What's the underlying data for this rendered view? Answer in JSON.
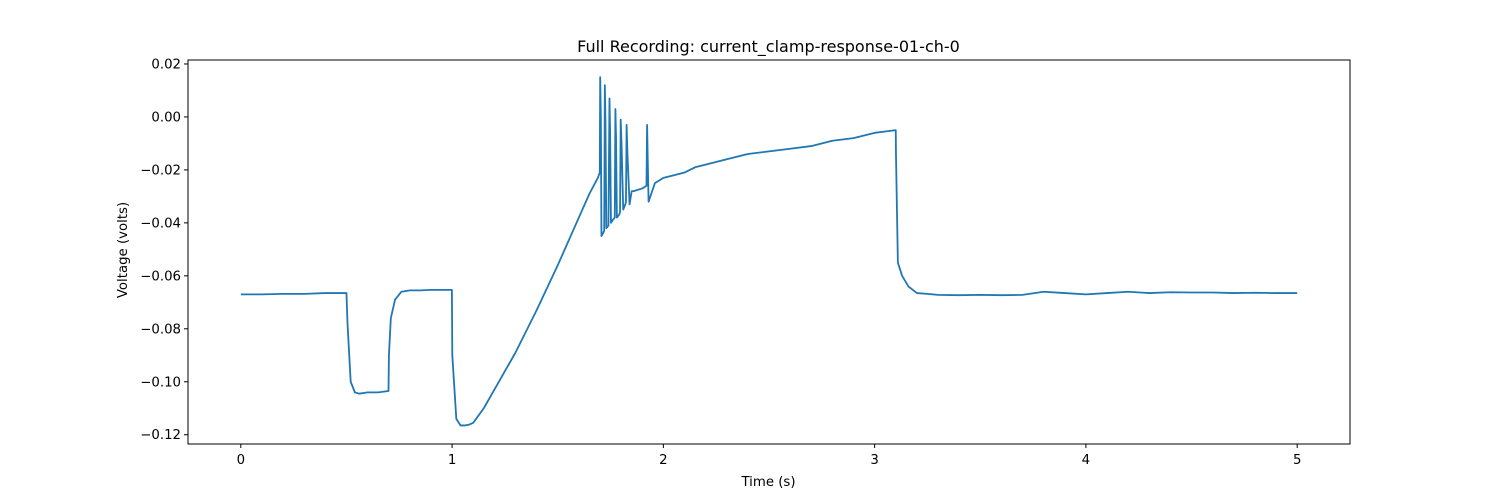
{
  "chart_data": {
    "type": "line",
    "title": "Full Recording: current_clamp-response-01-ch-0",
    "xlabel": "Time (s)",
    "ylabel": "Voltage (volts)",
    "xlim": [
      -0.25,
      5.25
    ],
    "ylim": [
      -0.1235,
      0.0215
    ],
    "x_ticks": [
      0,
      1,
      2,
      3,
      4,
      5
    ],
    "x_tick_labels": [
      "0",
      "1",
      "2",
      "3",
      "4",
      "5"
    ],
    "y_ticks": [
      0.02,
      0.0,
      -0.02,
      -0.04,
      -0.06,
      -0.08,
      -0.1,
      -0.12
    ],
    "y_tick_labels": [
      "0.02",
      "0.00",
      "−0.02",
      "−0.04",
      "−0.06",
      "−0.08",
      "−0.10",
      "−0.12"
    ],
    "grid": false,
    "series": [
      {
        "color": "#1f77b4",
        "x": [
          0,
          0.1,
          0.2,
          0.3,
          0.4,
          0.5,
          0.505,
          0.52,
          0.54,
          0.56,
          0.6,
          0.65,
          0.699,
          0.701,
          0.71,
          0.73,
          0.76,
          0.8,
          0.85,
          0.9,
          0.95,
          0.999,
          1.001,
          1.02,
          1.04,
          1.06,
          1.08,
          1.1,
          1.15,
          1.2,
          1.3,
          1.4,
          1.5,
          1.6,
          1.65,
          1.69,
          1.699,
          1.701,
          1.704,
          1.707,
          1.72,
          1.723,
          1.726,
          1.73,
          1.74,
          1.745,
          1.748,
          1.752,
          1.76,
          1.77,
          1.773,
          1.776,
          1.78,
          1.79,
          1.795,
          1.798,
          1.802,
          1.81,
          1.82,
          1.823,
          1.826,
          1.83,
          1.84,
          1.85,
          1.86,
          1.9,
          1.92,
          1.923,
          1.926,
          1.93,
          1.96,
          2.0,
          2.05,
          2.1,
          2.15,
          2.2,
          2.3,
          2.4,
          2.5,
          2.6,
          2.7,
          2.8,
          2.9,
          3.0,
          3.05,
          3.1,
          3.101,
          3.11,
          3.13,
          3.16,
          3.2,
          3.25,
          3.3,
          3.4,
          3.5,
          3.6,
          3.7,
          3.8,
          3.9,
          4.0,
          4.1,
          4.2,
          4.3,
          4.4,
          4.5,
          4.6,
          4.7,
          4.8,
          4.9,
          5.0
        ],
        "y": [
          -0.067,
          -0.067,
          -0.0668,
          -0.0668,
          -0.0665,
          -0.0665,
          -0.078,
          -0.1,
          -0.104,
          -0.1045,
          -0.104,
          -0.104,
          -0.1035,
          -0.09,
          -0.076,
          -0.069,
          -0.066,
          -0.0655,
          -0.0655,
          -0.0653,
          -0.0653,
          -0.0653,
          -0.09,
          -0.114,
          -0.1165,
          -0.1165,
          -0.1162,
          -0.1155,
          -0.11,
          -0.103,
          -0.089,
          -0.073,
          -0.056,
          -0.038,
          -0.029,
          -0.023,
          -0.021,
          0.015,
          0.0,
          -0.045,
          -0.043,
          0.012,
          -0.002,
          -0.042,
          -0.041,
          0.007,
          -0.006,
          -0.04,
          -0.039,
          -0.038,
          0.003,
          -0.008,
          -0.038,
          -0.037,
          -0.036,
          -0.001,
          -0.01,
          -0.035,
          -0.033,
          -0.032,
          -0.003,
          -0.014,
          -0.033,
          -0.028,
          -0.028,
          -0.027,
          -0.026,
          -0.003,
          -0.016,
          -0.032,
          -0.025,
          -0.023,
          -0.022,
          -0.021,
          -0.019,
          -0.018,
          -0.016,
          -0.014,
          -0.013,
          -0.012,
          -0.011,
          -0.009,
          -0.008,
          -0.006,
          -0.0055,
          -0.005,
          -0.014,
          -0.055,
          -0.06,
          -0.064,
          -0.0665,
          -0.0668,
          -0.0672,
          -0.0673,
          -0.0672,
          -0.0673,
          -0.0672,
          -0.066,
          -0.0665,
          -0.067,
          -0.0665,
          -0.066,
          -0.0665,
          -0.0662,
          -0.0663,
          -0.0663,
          -0.0665,
          -0.0664,
          -0.0665,
          -0.0665
        ]
      }
    ]
  }
}
